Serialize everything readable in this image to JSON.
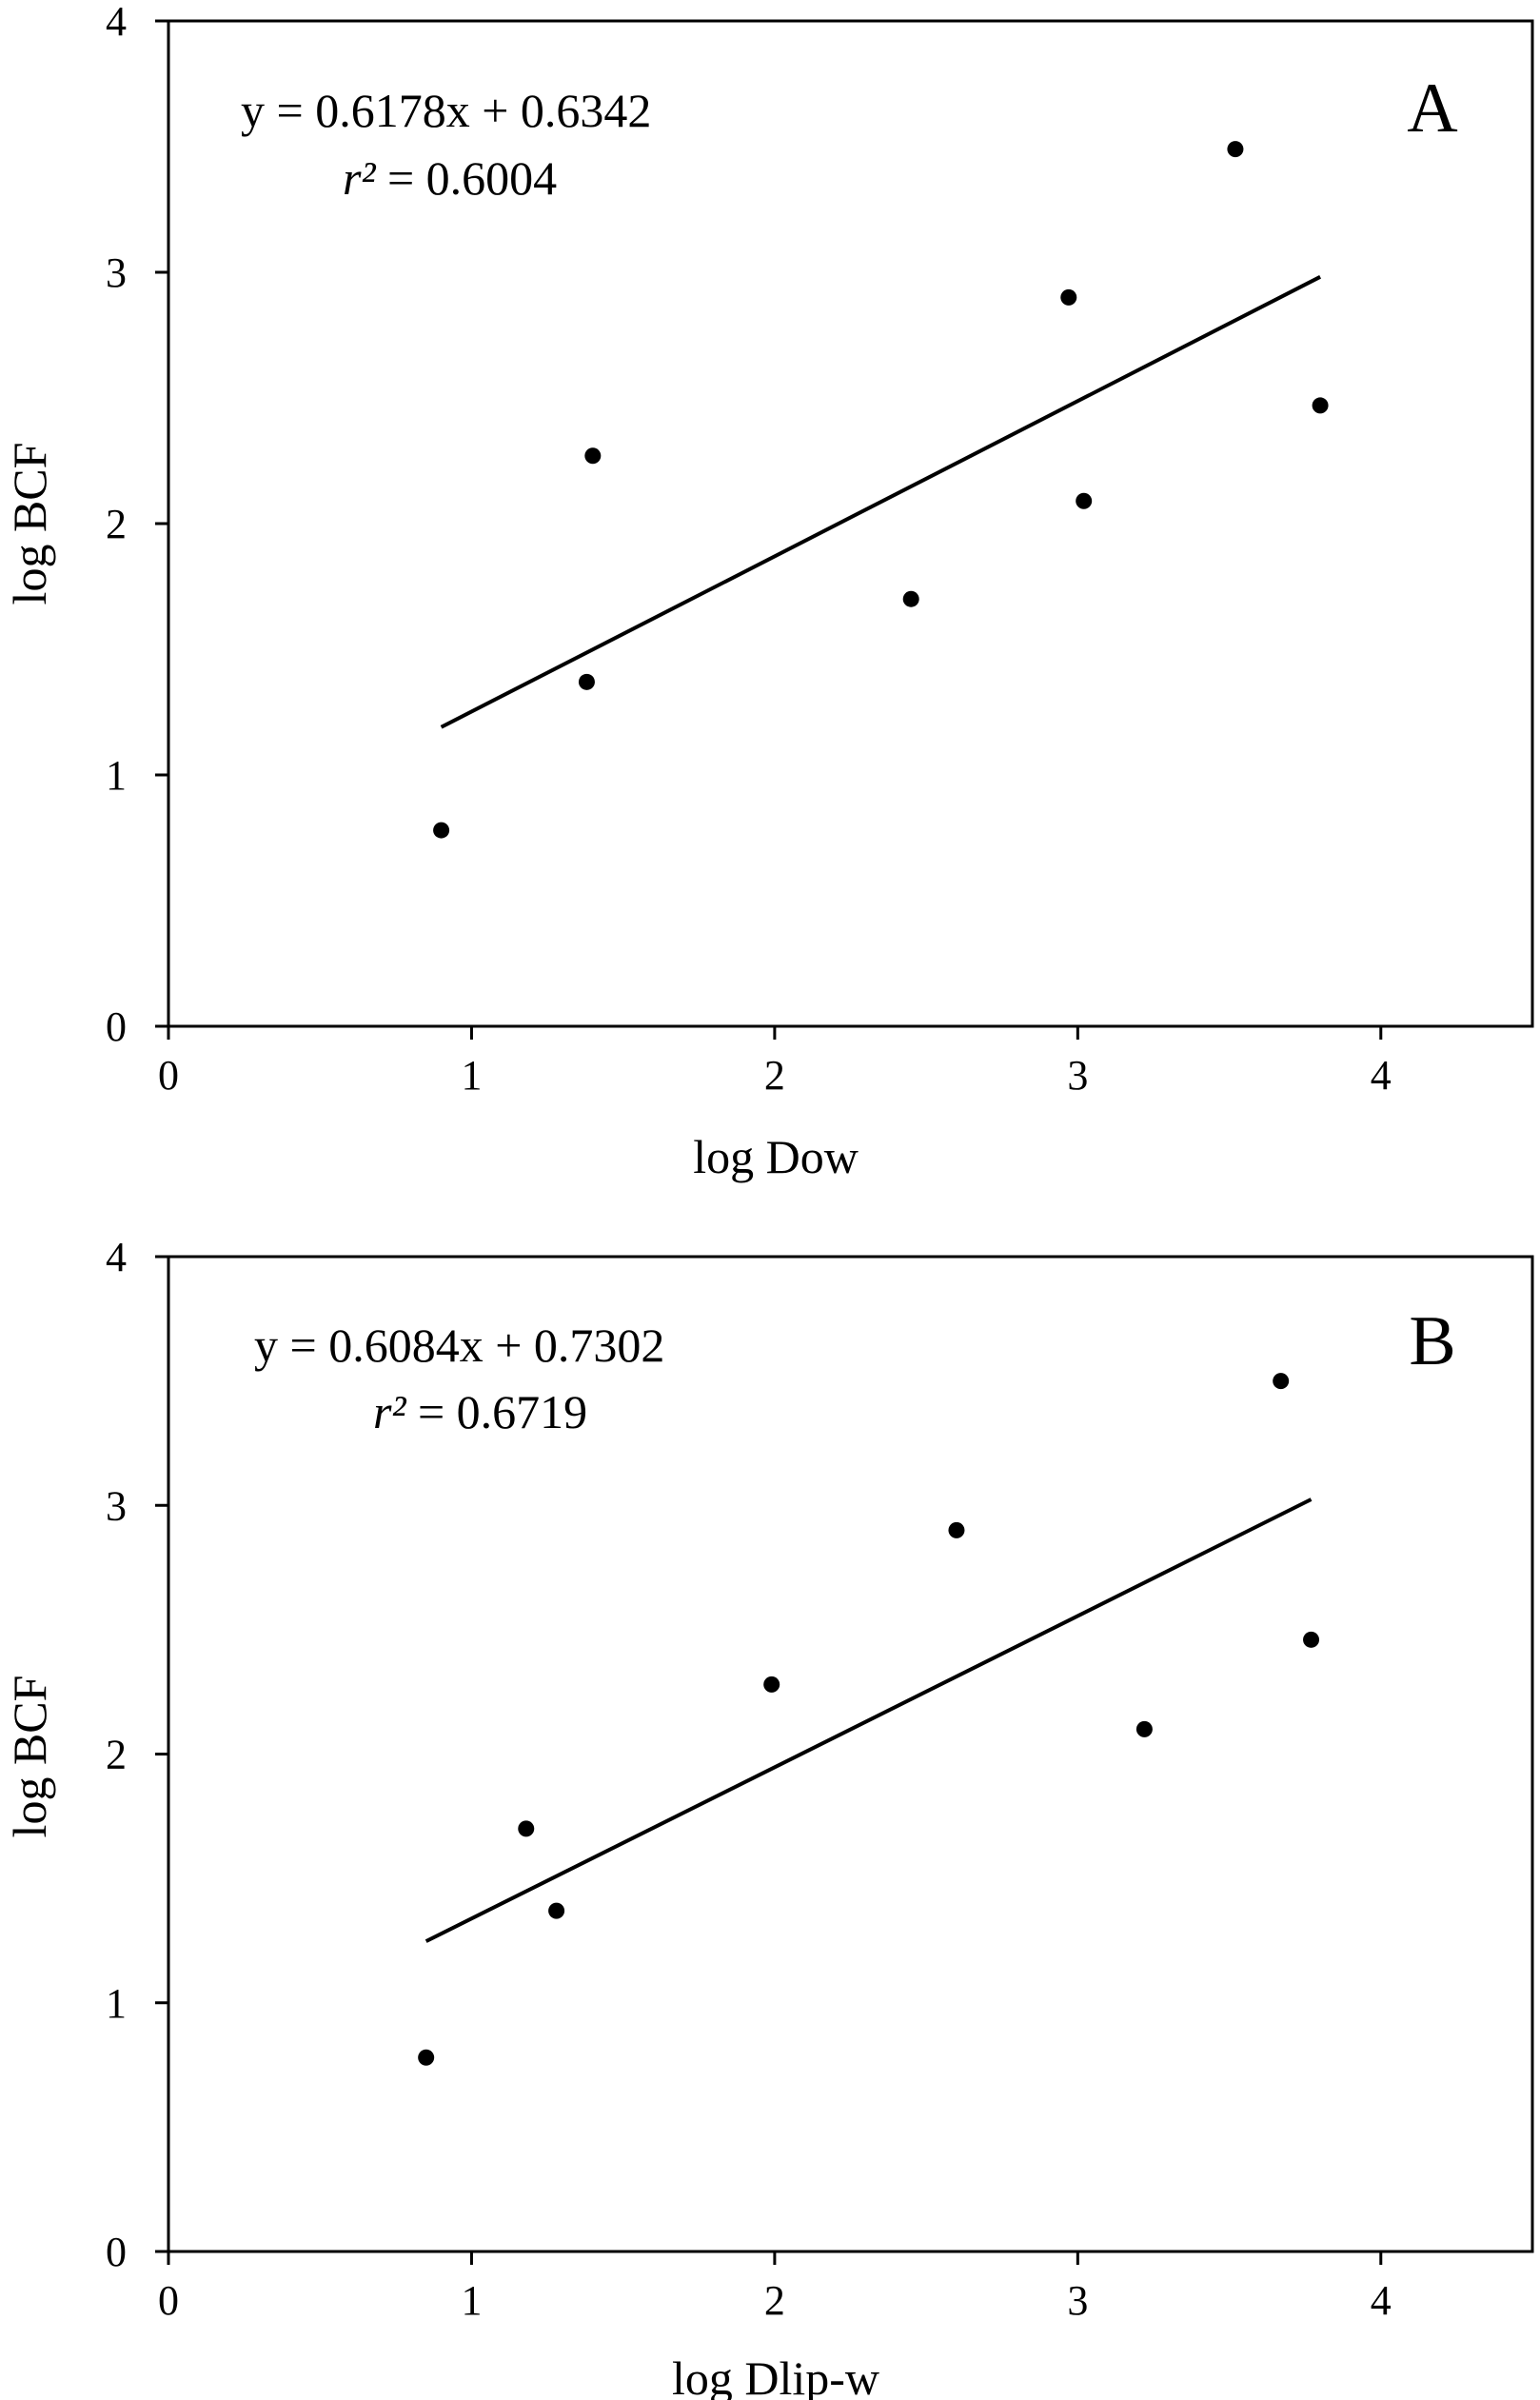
{
  "chart_data": [
    {
      "type": "scatter",
      "panel_label": "A",
      "xlabel": "log Dow",
      "ylabel": "log BCF",
      "xlim": [
        0,
        4.5
      ],
      "ylim": [
        0,
        4
      ],
      "x_ticks": [
        0,
        1,
        2,
        3,
        4
      ],
      "y_ticks": [
        0,
        1,
        2,
        3,
        4
      ],
      "x_tick_labels": [
        "0",
        "1",
        "2",
        "3",
        "4"
      ],
      "y_tick_labels": [
        "0",
        "1",
        "2",
        "3",
        "4"
      ],
      "grid": false,
      "series": [
        {
          "name": "data",
          "x": [
            0.9,
            1.38,
            1.4,
            2.45,
            2.97,
            3.02,
            3.52,
            3.8
          ],
          "y": [
            0.78,
            1.37,
            2.27,
            1.7,
            2.9,
            2.09,
            3.49,
            2.47
          ]
        }
      ],
      "trendline": {
        "slope": 0.6178,
        "intercept": 0.6342,
        "x_range": [
          0.9,
          3.8
        ]
      },
      "equation": "y = 0.6178x + 0.6342",
      "r2_symbol": "r²",
      "r2_value": "= 0.6004"
    },
    {
      "type": "scatter",
      "panel_label": "B",
      "xlabel": "log Dlip-w",
      "ylabel": "log BCF",
      "xlim": [
        0,
        4.5
      ],
      "ylim": [
        0,
        4
      ],
      "x_ticks": [
        0,
        1,
        2,
        3,
        4
      ],
      "y_ticks": [
        0,
        1,
        2,
        3,
        4
      ],
      "x_tick_labels": [
        "0",
        "1",
        "2",
        "3",
        "4"
      ],
      "y_tick_labels": [
        "0",
        "1",
        "2",
        "3",
        "4"
      ],
      "grid": false,
      "series": [
        {
          "name": "data",
          "x": [
            0.85,
            1.18,
            1.28,
            1.99,
            2.6,
            3.22,
            3.67,
            3.77
          ],
          "y": [
            0.78,
            1.7,
            1.37,
            2.28,
            2.9,
            2.1,
            3.5,
            2.46
          ]
        }
      ],
      "trendline": {
        "slope": 0.6084,
        "intercept": 0.7302,
        "x_range": [
          0.85,
          3.77
        ]
      },
      "equation": "y = 0.6084x + 0.7302",
      "r2_symbol": "r²",
      "r2_value": "= 0.6719"
    }
  ]
}
